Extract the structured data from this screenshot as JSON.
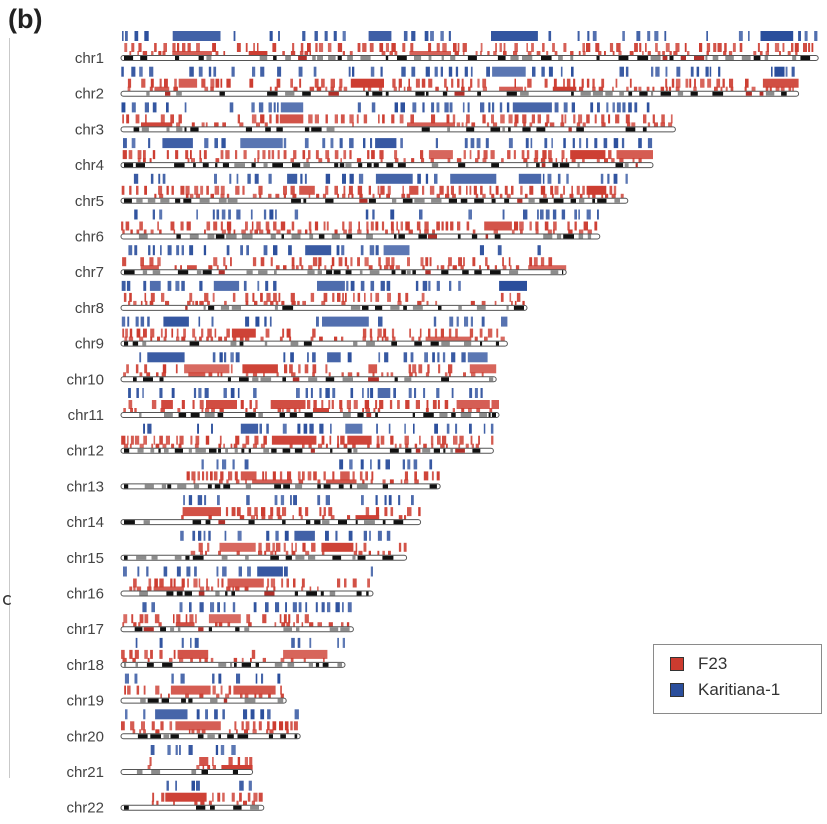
{
  "panel_label": "(b)",
  "side_mark": "ⅽ",
  "colors": {
    "f23": "#cc3b2f",
    "karitiana": "#2a4e9c",
    "ideogram_outline": "#555555"
  },
  "chart_data": {
    "type": "karyogram",
    "chromosomes": [
      "chr1",
      "chr2",
      "chr3",
      "chr4",
      "chr5",
      "chr6",
      "chr7",
      "chr8",
      "chr9",
      "chr10",
      "chr11",
      "chr12",
      "chr13",
      "chr14",
      "chr15",
      "chr16",
      "chr17",
      "chr18",
      "chr19",
      "chr20",
      "chr21",
      "chr22"
    ],
    "lengths_mb": [
      249,
      242,
      198,
      190,
      181,
      171,
      159,
      145,
      138,
      134,
      135,
      133,
      114,
      107,
      102,
      90,
      83,
      80,
      59,
      64,
      47,
      51
    ],
    "legend": [
      {
        "name": "F23",
        "color": "#cc3b2f"
      },
      {
        "name": "Karitiana-1",
        "color": "#2a4e9c"
      }
    ],
    "legend_placement": "bottom-right",
    "grid": false
  }
}
